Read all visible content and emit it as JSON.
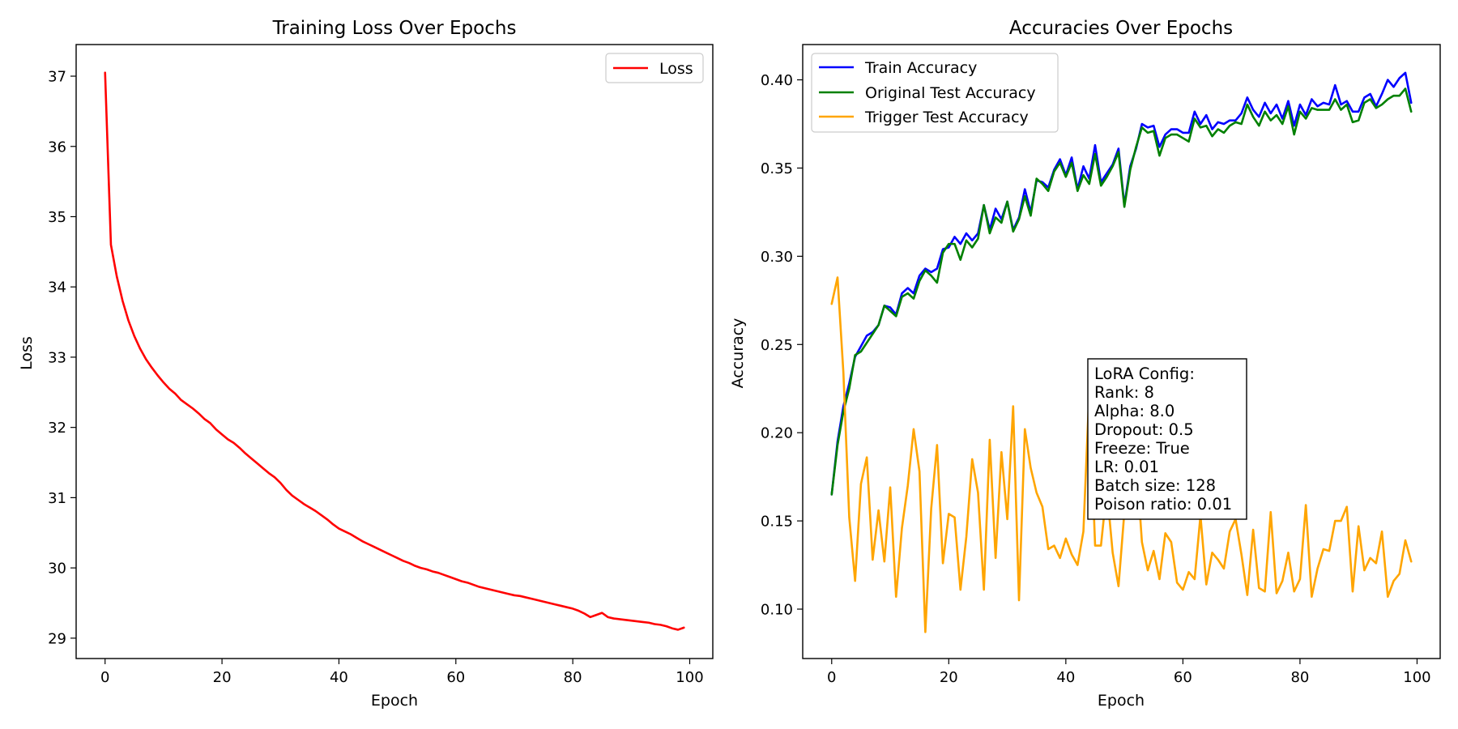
{
  "figure": {
    "background": "#ffffff"
  },
  "chart_data": [
    {
      "type": "line",
      "title": "Training Loss Over Epochs",
      "xlabel": "Epoch",
      "ylabel": "Loss",
      "xlim": [
        -4.95,
        103.95
      ],
      "ylim": [
        28.71,
        37.45
      ],
      "xticks": [
        0,
        20,
        40,
        60,
        80,
        100
      ],
      "yticks": [
        29,
        30,
        31,
        32,
        33,
        34,
        35,
        36,
        37
      ],
      "grid": false,
      "legend": {
        "placement": "upper right",
        "entries": [
          "Loss"
        ]
      },
      "x": [
        0,
        1,
        2,
        3,
        4,
        5,
        6,
        7,
        8,
        9,
        10,
        11,
        12,
        13,
        14,
        15,
        16,
        17,
        18,
        19,
        20,
        21,
        22,
        23,
        24,
        25,
        26,
        27,
        28,
        29,
        30,
        31,
        32,
        33,
        34,
        35,
        36,
        37,
        38,
        39,
        40,
        41,
        42,
        43,
        44,
        45,
        46,
        47,
        48,
        49,
        50,
        51,
        52,
        53,
        54,
        55,
        56,
        57,
        58,
        59,
        60,
        61,
        62,
        63,
        64,
        65,
        66,
        67,
        68,
        69,
        70,
        71,
        72,
        73,
        74,
        75,
        76,
        77,
        78,
        79,
        80,
        81,
        82,
        83,
        84,
        85,
        86,
        87,
        88,
        89,
        90,
        91,
        92,
        93,
        94,
        95,
        96,
        97,
        98,
        99
      ],
      "series": [
        {
          "name": "Loss",
          "color": "#ff0000",
          "values": [
            37.05,
            34.6,
            34.15,
            33.8,
            33.52,
            33.3,
            33.12,
            32.97,
            32.85,
            32.74,
            32.64,
            32.55,
            32.48,
            32.39,
            32.33,
            32.27,
            32.2,
            32.12,
            32.06,
            31.97,
            31.9,
            31.83,
            31.78,
            31.71,
            31.63,
            31.56,
            31.49,
            31.42,
            31.35,
            31.29,
            31.21,
            31.11,
            31.03,
            30.97,
            30.91,
            30.86,
            30.81,
            30.75,
            30.69,
            30.62,
            30.56,
            30.52,
            30.48,
            30.43,
            30.38,
            30.34,
            30.3,
            30.26,
            30.22,
            30.18,
            30.14,
            30.1,
            30.07,
            30.03,
            30.0,
            29.98,
            29.95,
            29.93,
            29.9,
            29.87,
            29.84,
            29.81,
            29.79,
            29.76,
            29.73,
            29.71,
            29.69,
            29.67,
            29.65,
            29.63,
            29.61,
            29.6,
            29.58,
            29.56,
            29.54,
            29.52,
            29.5,
            29.48,
            29.46,
            29.44,
            29.42,
            29.39,
            29.35,
            29.3,
            29.33,
            29.36,
            29.3,
            29.28,
            29.27,
            29.26,
            29.25,
            29.24,
            29.23,
            29.22,
            29.2,
            29.19,
            29.17,
            29.14,
            29.12,
            29.15
          ]
        }
      ]
    },
    {
      "type": "line",
      "title": "Accuracies Over Epochs",
      "xlabel": "Epoch",
      "ylabel": "Accuracy",
      "xlim": [
        -4.95,
        103.95
      ],
      "ylim": [
        0.072,
        0.42
      ],
      "xticks": [
        0,
        20,
        40,
        60,
        80,
        100
      ],
      "yticks": [
        0.1,
        0.15,
        0.2,
        0.25,
        0.3,
        0.35,
        0.4
      ],
      "yticklabels": [
        "0.10",
        "0.15",
        "0.20",
        "0.25",
        "0.30",
        "0.35",
        "0.40"
      ],
      "grid": false,
      "legend": {
        "placement": "upper left",
        "entries": [
          "Train Accuracy",
          "Original Test Accuracy",
          "Trigger Test Accuracy"
        ]
      },
      "annotation": {
        "lines": [
          "LoRA Config:",
          "Rank: 8",
          "Alpha: 8.0",
          "Dropout: 0.5",
          "Freeze: True",
          "LR: 0.01",
          "Batch size: 128",
          "Poison ratio: 0.01"
        ]
      },
      "x": [
        0,
        1,
        2,
        3,
        4,
        5,
        6,
        7,
        8,
        9,
        10,
        11,
        12,
        13,
        14,
        15,
        16,
        17,
        18,
        19,
        20,
        21,
        22,
        23,
        24,
        25,
        26,
        27,
        28,
        29,
        30,
        31,
        32,
        33,
        34,
        35,
        36,
        37,
        38,
        39,
        40,
        41,
        42,
        43,
        44,
        45,
        46,
        47,
        48,
        49,
        50,
        51,
        52,
        53,
        54,
        55,
        56,
        57,
        58,
        59,
        60,
        61,
        62,
        63,
        64,
        65,
        66,
        67,
        68,
        69,
        70,
        71,
        72,
        73,
        74,
        75,
        76,
        77,
        78,
        79,
        80,
        81,
        82,
        83,
        84,
        85,
        86,
        87,
        88,
        89,
        90,
        91,
        92,
        93,
        94,
        95,
        96,
        97,
        98,
        99
      ],
      "series": [
        {
          "name": "Train Accuracy",
          "color": "#0000ff",
          "values": [
            0.165,
            0.195,
            0.215,
            0.228,
            0.243,
            0.249,
            0.255,
            0.257,
            0.261,
            0.272,
            0.271,
            0.267,
            0.279,
            0.282,
            0.279,
            0.289,
            0.293,
            0.291,
            0.293,
            0.304,
            0.305,
            0.311,
            0.307,
            0.313,
            0.309,
            0.313,
            0.329,
            0.315,
            0.327,
            0.321,
            0.331,
            0.315,
            0.322,
            0.338,
            0.325,
            0.343,
            0.342,
            0.339,
            0.349,
            0.355,
            0.346,
            0.356,
            0.338,
            0.351,
            0.344,
            0.363,
            0.342,
            0.347,
            0.352,
            0.361,
            0.329,
            0.351,
            0.361,
            0.375,
            0.373,
            0.374,
            0.362,
            0.369,
            0.372,
            0.372,
            0.37,
            0.37,
            0.382,
            0.375,
            0.38,
            0.372,
            0.376,
            0.375,
            0.377,
            0.377,
            0.381,
            0.39,
            0.383,
            0.379,
            0.387,
            0.381,
            0.386,
            0.378,
            0.388,
            0.374,
            0.386,
            0.38,
            0.389,
            0.385,
            0.387,
            0.386,
            0.397,
            0.386,
            0.388,
            0.382,
            0.382,
            0.39,
            0.392,
            0.385,
            0.392,
            0.4,
            0.396,
            0.401,
            0.404,
            0.387
          ]
        },
        {
          "name": "Original Test Accuracy",
          "color": "#008000",
          "values": [
            0.165,
            0.193,
            0.212,
            0.225,
            0.244,
            0.246,
            0.251,
            0.256,
            0.261,
            0.272,
            0.269,
            0.266,
            0.277,
            0.279,
            0.276,
            0.286,
            0.292,
            0.289,
            0.285,
            0.302,
            0.307,
            0.307,
            0.298,
            0.309,
            0.305,
            0.31,
            0.329,
            0.313,
            0.322,
            0.319,
            0.331,
            0.314,
            0.321,
            0.334,
            0.323,
            0.344,
            0.341,
            0.337,
            0.348,
            0.353,
            0.345,
            0.353,
            0.337,
            0.346,
            0.341,
            0.358,
            0.34,
            0.345,
            0.351,
            0.359,
            0.328,
            0.349,
            0.362,
            0.373,
            0.37,
            0.371,
            0.357,
            0.367,
            0.369,
            0.369,
            0.367,
            0.365,
            0.378,
            0.373,
            0.374,
            0.368,
            0.372,
            0.37,
            0.374,
            0.376,
            0.375,
            0.386,
            0.379,
            0.374,
            0.382,
            0.377,
            0.38,
            0.375,
            0.385,
            0.369,
            0.382,
            0.378,
            0.384,
            0.383,
            0.383,
            0.383,
            0.389,
            0.383,
            0.386,
            0.376,
            0.377,
            0.387,
            0.389,
            0.384,
            0.386,
            0.389,
            0.391,
            0.391,
            0.395,
            0.382
          ]
        },
        {
          "name": "Trigger Test Accuracy",
          "color": "#ffa500",
          "values": [
            0.273,
            0.288,
            0.234,
            0.152,
            0.116,
            0.171,
            0.186,
            0.128,
            0.156,
            0.127,
            0.169,
            0.107,
            0.146,
            0.17,
            0.202,
            0.178,
            0.087,
            0.157,
            0.193,
            0.126,
            0.154,
            0.152,
            0.111,
            0.141,
            0.185,
            0.166,
            0.111,
            0.196,
            0.129,
            0.189,
            0.151,
            0.215,
            0.105,
            0.202,
            0.18,
            0.166,
            0.158,
            0.134,
            0.136,
            0.129,
            0.14,
            0.131,
            0.125,
            0.144,
            0.223,
            0.136,
            0.136,
            0.168,
            0.132,
            0.113,
            0.155,
            0.18,
            0.186,
            0.138,
            0.122,
            0.133,
            0.117,
            0.143,
            0.138,
            0.115,
            0.111,
            0.121,
            0.117,
            0.153,
            0.114,
            0.132,
            0.128,
            0.123,
            0.144,
            0.151,
            0.131,
            0.108,
            0.145,
            0.112,
            0.11,
            0.155,
            0.109,
            0.116,
            0.132,
            0.11,
            0.117,
            0.159,
            0.107,
            0.123,
            0.134,
            0.133,
            0.15,
            0.15,
            0.158,
            0.11,
            0.147,
            0.122,
            0.129,
            0.126,
            0.144,
            0.107,
            0.116,
            0.12,
            0.139,
            0.127
          ]
        }
      ]
    }
  ]
}
